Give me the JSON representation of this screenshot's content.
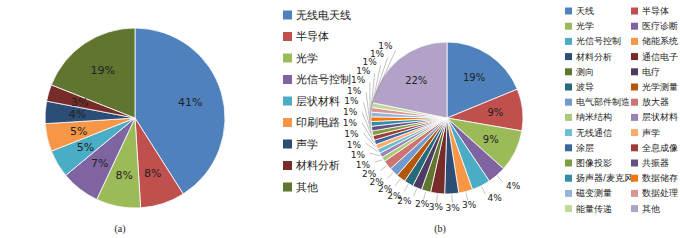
{
  "chart_data": [
    {
      "type": "pie",
      "title": "(a)",
      "categories": [
        "无线电天线",
        "半导体",
        "光学",
        "光信号控制",
        "层状材料",
        "印刷电路",
        "声学",
        "材料分析",
        "其他"
      ],
      "values": [
        41,
        8,
        8,
        7,
        5,
        5,
        4,
        3,
        19
      ],
      "value_labels": [
        "41%",
        "8%",
        "8%",
        "7%",
        "5%",
        "5%",
        "4%",
        "3%",
        "19%"
      ],
      "colors": [
        "#4f81bd",
        "#c0504d",
        "#9bbb59",
        "#8064a2",
        "#4bacc6",
        "#f79646",
        "#2c4d75",
        "#772c2a",
        "#5f7530"
      ],
      "data_labels": true,
      "legend": "right"
    },
    {
      "type": "pie",
      "title": "(b)",
      "categories": [
        "天线",
        "半导体",
        "光学",
        "医疗诊断",
        "光信号控制",
        "储能系统",
        "材料分析",
        "通信电子",
        "测向",
        "电疗",
        "波导",
        "光学测量",
        "电气部件制造",
        "放大器",
        "纳米结构",
        "层状材料",
        "无线通信",
        "声学",
        "涂层",
        "全息成像",
        "图像投影",
        "共振器",
        "扬声器/麦克风",
        "数据储存",
        "磁变测量",
        "数据处理",
        "能量传递",
        "其他"
      ],
      "values": [
        19,
        9,
        9,
        4,
        4,
        3,
        3,
        3,
        2,
        2,
        2,
        2,
        2,
        2,
        1,
        1,
        1,
        1,
        1,
        1,
        1,
        1,
        1,
        1,
        1,
        1,
        1,
        22
      ],
      "value_labels": [
        "19%",
        "9%",
        "9%",
        "4%",
        "4%",
        "3%",
        "3%",
        "3%",
        "2%",
        "2%",
        "2%",
        "2%",
        "2%",
        "2%",
        "1%",
        "1%",
        "1%",
        "1%",
        "1%",
        "1%",
        "1%",
        "1%",
        "1%",
        "1%",
        "1%",
        "1%",
        "1%",
        "22%"
      ],
      "colors": [
        "#4f81bd",
        "#c0504d",
        "#9bbb59",
        "#8064a2",
        "#4bacc6",
        "#f79646",
        "#2c4d75",
        "#772c2a",
        "#5f7530",
        "#4d3b62",
        "#276a7c",
        "#b65708",
        "#729aca",
        "#cd7371",
        "#afc97a",
        "#9983b5",
        "#6fbdd1",
        "#f9ab6b",
        "#3a679c",
        "#9f3b38",
        "#7f9c40",
        "#664f83",
        "#358ca3",
        "#f3740a",
        "#95b3d7",
        "#d99694",
        "#c3d69b",
        "#b2a2c7"
      ],
      "data_labels": true,
      "legend": "right"
    }
  ]
}
